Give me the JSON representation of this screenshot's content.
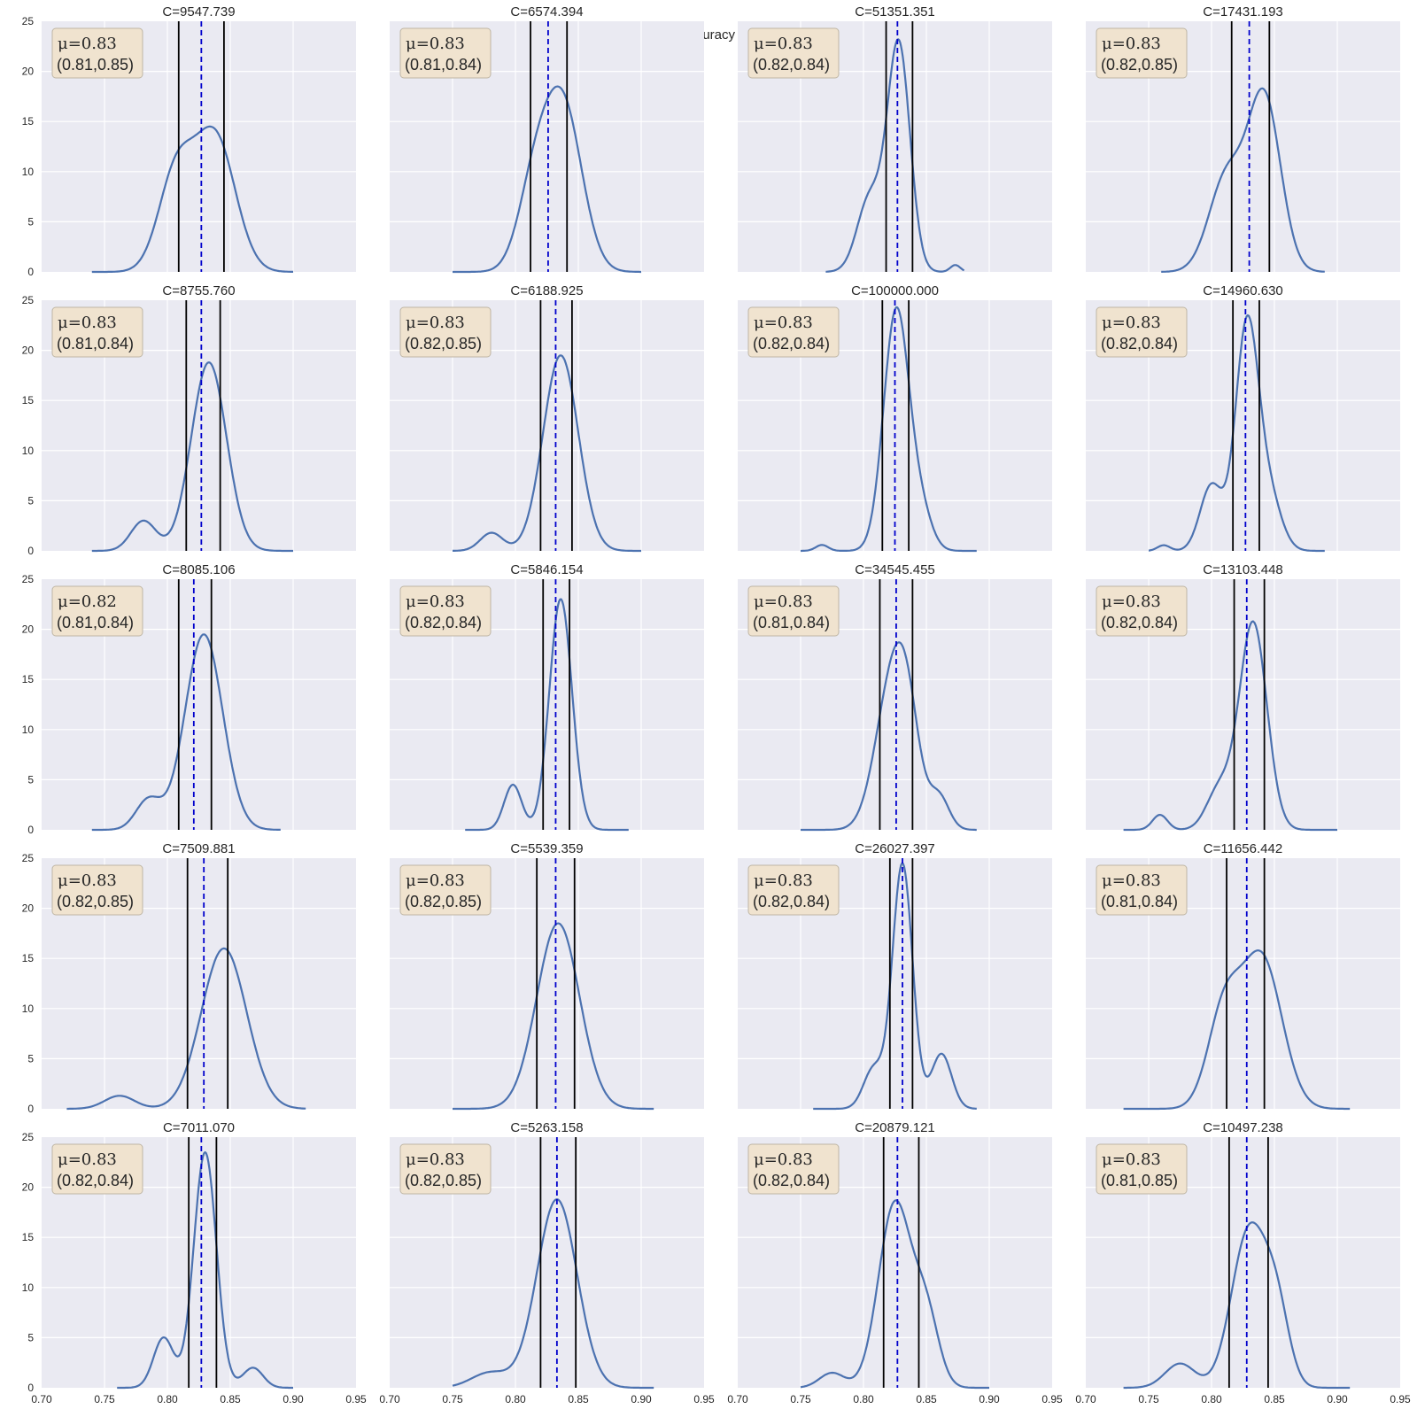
{
  "suptitle": "accuracy",
  "colors": {
    "kde": "#4C72B0",
    "mean": "#0000CC",
    "ci": "#000000",
    "panel_bg": "#EAEAF2",
    "box": "#F0E3CF"
  },
  "chart_data": {
    "type": "kde-grid",
    "rows": 5,
    "cols": 4,
    "x_ticks": [
      "0.70",
      "0.75",
      "0.80",
      "0.85",
      "0.90",
      "0.95"
    ],
    "y_ticks": [
      "0",
      "5",
      "10",
      "15",
      "20",
      "25"
    ],
    "xlim": [
      0.7,
      0.95
    ],
    "ylim": [
      0,
      25
    ],
    "grid": true,
    "panels": [
      {
        "title": "C=9547.739",
        "mu_label": "μ=0.83",
        "ci_label": "(0.81,0.85)",
        "mean": 0.827,
        "ci": [
          0.809,
          0.845
        ],
        "x_range": [
          0.74,
          0.9
        ],
        "peaks": [
          [
            0.807,
            10.5,
            0.014
          ],
          [
            0.838,
            14.5,
            0.016
          ]
        ],
        "peak": 14.5
      },
      {
        "title": "C=6574.394",
        "mu_label": "μ=0.83",
        "ci_label": "(0.81,0.84)",
        "mean": 0.826,
        "ci": [
          0.812,
          0.841
        ],
        "x_range": [
          0.75,
          0.9
        ],
        "peaks": [
          [
            0.815,
            9,
            0.013
          ],
          [
            0.838,
            18.5,
            0.015
          ]
        ],
        "peak": 18.5
      },
      {
        "title": "C=51351.351",
        "mu_label": "μ=0.83",
        "ci_label": "(0.82,0.84)",
        "mean": 0.827,
        "ci": [
          0.818,
          0.839
        ],
        "x_range": [
          0.77,
          0.88
        ],
        "peaks": [
          [
            0.805,
            7.5,
            0.01
          ],
          [
            0.828,
            23.2,
            0.009
          ],
          [
            0.873,
            0.7,
            0.004
          ]
        ],
        "peak": 23.2
      },
      {
        "title": "C=17431.193",
        "mu_label": "μ=0.83",
        "ci_label": "(0.82,0.85)",
        "mean": 0.83,
        "ci": [
          0.816,
          0.846
        ],
        "x_range": [
          0.76,
          0.89
        ],
        "peaks": [
          [
            0.812,
            10,
            0.014
          ],
          [
            0.842,
            18.3,
            0.013
          ]
        ],
        "peak": 18.3
      },
      {
        "title": "C=8755.760",
        "mu_label": "μ=0.83",
        "ci_label": "(0.81,0.84)",
        "mean": 0.827,
        "ci": [
          0.815,
          0.842
        ],
        "x_range": [
          0.74,
          0.9
        ],
        "peaks": [
          [
            0.781,
            3,
            0.01
          ],
          [
            0.833,
            18.8,
            0.014
          ]
        ],
        "peak": 18.8
      },
      {
        "title": "C=6188.925",
        "mu_label": "μ=0.83",
        "ci_label": "(0.82,0.85)",
        "mean": 0.832,
        "ci": [
          0.82,
          0.845
        ],
        "x_range": [
          0.75,
          0.9
        ],
        "peaks": [
          [
            0.781,
            1.8,
            0.009
          ],
          [
            0.836,
            19.5,
            0.014
          ]
        ],
        "peak": 19.5
      },
      {
        "title": "C=100000.000",
        "mu_label": "μ=0.83",
        "ci_label": "(0.82,0.84)",
        "mean": 0.825,
        "ci": [
          0.815,
          0.836
        ],
        "x_range": [
          0.75,
          0.89
        ],
        "peaks": [
          [
            0.767,
            0.6,
            0.005
          ],
          [
            0.826,
            24.3,
            0.01
          ],
          [
            0.845,
            4,
            0.009
          ]
        ],
        "peak": 24.3
      },
      {
        "title": "C=14960.630",
        "mu_label": "μ=0.83",
        "ci_label": "(0.82,0.84)",
        "mean": 0.827,
        "ci": [
          0.817,
          0.838
        ],
        "x_range": [
          0.75,
          0.89
        ],
        "peaks": [
          [
            0.762,
            0.6,
            0.005
          ],
          [
            0.8,
            7,
            0.009
          ],
          [
            0.828,
            23.5,
            0.009
          ],
          [
            0.845,
            6,
            0.01
          ]
        ],
        "peak": 23.5
      },
      {
        "title": "C=8085.106",
        "mu_label": "μ=0.82",
        "ci_label": "(0.81,0.84)",
        "mean": 0.821,
        "ci": [
          0.809,
          0.835
        ],
        "x_range": [
          0.74,
          0.89
        ],
        "peaks": [
          [
            0.785,
            3,
            0.01
          ],
          [
            0.829,
            19.5,
            0.015
          ]
        ],
        "peak": 19.5
      },
      {
        "title": "C=5846.154",
        "mu_label": "μ=0.83",
        "ci_label": "(0.82,0.84)",
        "mean": 0.832,
        "ci": [
          0.822,
          0.843
        ],
        "x_range": [
          0.76,
          0.89
        ],
        "peaks": [
          [
            0.798,
            4.5,
            0.007
          ],
          [
            0.836,
            23,
            0.009
          ]
        ],
        "peak": 23
      },
      {
        "title": "C=34545.455",
        "mu_label": "μ=0.83",
        "ci_label": "(0.81,0.84)",
        "mean": 0.826,
        "ci": [
          0.813,
          0.839
        ],
        "x_range": [
          0.75,
          0.89
        ],
        "peaks": [
          [
            0.822,
            16.5,
            0.013
          ],
          [
            0.835,
            10,
            0.01
          ],
          [
            0.86,
            4,
            0.008
          ]
        ],
        "peak": 18.7
      },
      {
        "title": "C=13103.448",
        "mu_label": "μ=0.83",
        "ci_label": "(0.82,0.84)",
        "mean": 0.828,
        "ci": [
          0.818,
          0.842
        ],
        "x_range": [
          0.73,
          0.9
        ],
        "peaks": [
          [
            0.759,
            1.5,
            0.006
          ],
          [
            0.806,
            4,
            0.01
          ],
          [
            0.833,
            20.8,
            0.011
          ]
        ],
        "peak": 20.8
      },
      {
        "title": "C=7509.881",
        "mu_label": "μ=0.83",
        "ci_label": "(0.82,0.85)",
        "mean": 0.829,
        "ci": [
          0.816,
          0.848
        ],
        "x_range": [
          0.72,
          0.91
        ],
        "peaks": [
          [
            0.762,
            1.3,
            0.012
          ],
          [
            0.845,
            16,
            0.018
          ]
        ],
        "peak": 16
      },
      {
        "title": "C=5539.359",
        "mu_label": "μ=0.83",
        "ci_label": "(0.82,0.85)",
        "mean": 0.832,
        "ci": [
          0.817,
          0.847
        ],
        "x_range": [
          0.75,
          0.91
        ],
        "peaks": [
          [
            0.834,
            18.5,
            0.017
          ]
        ],
        "peak": 18.5
      },
      {
        "title": "C=26027.397",
        "mu_label": "μ=0.83",
        "ci_label": "(0.82,0.84)",
        "mean": 0.831,
        "ci": [
          0.821,
          0.839
        ],
        "x_range": [
          0.76,
          0.89
        ],
        "peaks": [
          [
            0.808,
            4,
            0.008
          ],
          [
            0.831,
            24.5,
            0.008
          ],
          [
            0.862,
            5.5,
            0.008
          ]
        ],
        "peak": 24.5
      },
      {
        "title": "C=11656.442",
        "mu_label": "μ=0.83",
        "ci_label": "(0.81,0.84)",
        "mean": 0.828,
        "ci": [
          0.812,
          0.842
        ],
        "x_range": [
          0.73,
          0.91
        ],
        "peaks": [
          [
            0.81,
            10,
            0.013
          ],
          [
            0.84,
            15.8,
            0.016
          ]
        ],
        "peak": 15.8
      },
      {
        "title": "C=7011.070",
        "mu_label": "μ=0.83",
        "ci_label": "(0.82,0.84)",
        "mean": 0.827,
        "ci": [
          0.817,
          0.839
        ],
        "x_range": [
          0.76,
          0.9
        ],
        "peaks": [
          [
            0.797,
            5,
            0.008
          ],
          [
            0.83,
            23.5,
            0.009
          ],
          [
            0.868,
            2,
            0.008
          ]
        ],
        "peak": 23.5
      },
      {
        "title": "C=5263.158",
        "mu_label": "μ=0.83",
        "ci_label": "(0.82,0.85)",
        "mean": 0.833,
        "ci": [
          0.82,
          0.848
        ],
        "x_range": [
          0.75,
          0.91
        ],
        "peaks": [
          [
            0.78,
            1.5,
            0.015
          ],
          [
            0.833,
            18.5,
            0.016
          ]
        ],
        "peak": 18.8
      },
      {
        "title": "C=20879.121",
        "mu_label": "μ=0.83",
        "ci_label": "(0.82,0.84)",
        "mean": 0.827,
        "ci": [
          0.816,
          0.844
        ],
        "x_range": [
          0.75,
          0.9
        ],
        "peaks": [
          [
            0.775,
            1.5,
            0.01
          ],
          [
            0.825,
            18.5,
            0.013
          ],
          [
            0.85,
            7,
            0.01
          ]
        ],
        "peak": 18.7
      },
      {
        "title": "C=10497.238",
        "mu_label": "μ=0.83",
        "ci_label": "(0.81,0.85)",
        "mean": 0.828,
        "ci": [
          0.814,
          0.845
        ],
        "x_range": [
          0.73,
          0.91
        ],
        "peaks": [
          [
            0.775,
            2.5,
            0.012
          ],
          [
            0.83,
            16.3,
            0.014
          ],
          [
            0.852,
            7,
            0.01
          ]
        ],
        "peak": 16.5
      }
    ]
  }
}
